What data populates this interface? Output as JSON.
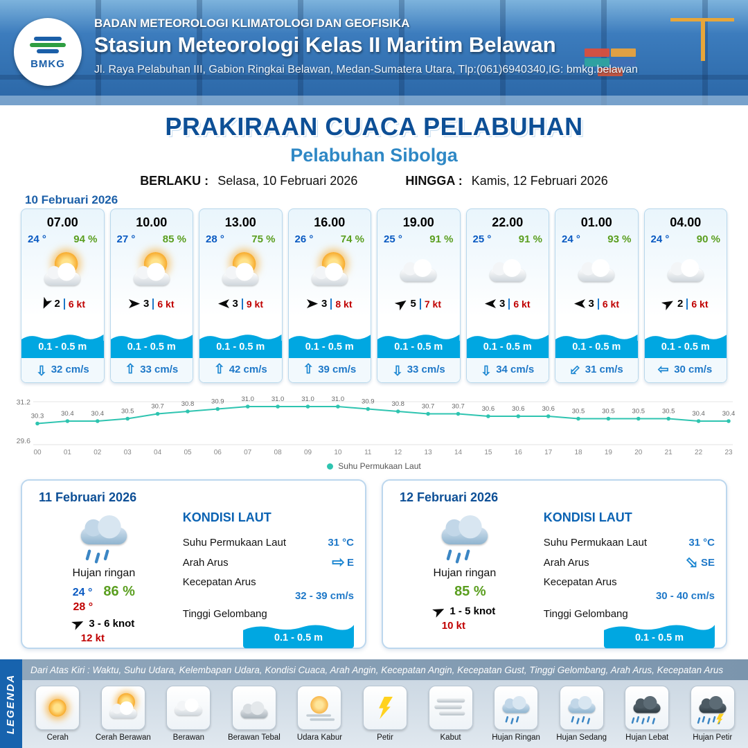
{
  "header": {
    "logo_text": "BMKG",
    "org": "BADAN METEOROLOGI KLIMATOLOGI DAN GEOFISIKA",
    "station": "Stasiun Meteorologi Kelas II Maritim Belawan",
    "address": "Jl. Raya Pelabuhan III, Gabion Ringkai Belawan, Medan-Sumatera Utara, Tlp:(061)6940340,IG: bmkg.belawan"
  },
  "title": {
    "main": "PRAKIRAAN CUACA PELABUHAN",
    "port": "Pelabuhan Sibolga",
    "berlaku_label": "BERLAKU :",
    "berlaku_value": "Selasa, 10 Februari 2026",
    "hingga_label": "HINGGA :",
    "hingga_value": "Kamis, 12 Februari 2026"
  },
  "forecast_date": "10 Februari 2026",
  "forecast_cards": [
    {
      "time": "07.00",
      "temp": "24 °",
      "humidity": "94 %",
      "icon": "sun-cloud",
      "wind_deg": 115,
      "wind_speed": "2",
      "wind_gust": "6 kt",
      "wave": "0.1 - 0.5 m",
      "current_deg": 180,
      "current": "32 cm/s"
    },
    {
      "time": "10.00",
      "temp": "27 °",
      "humidity": "85 %",
      "icon": "sun-cloud",
      "wind_deg": 0,
      "wind_speed": "3",
      "wind_gust": "6 kt",
      "wave": "0.1 - 0.5 m",
      "current_deg": 0,
      "current": "33 cm/s"
    },
    {
      "time": "13.00",
      "temp": "28 °",
      "humidity": "75 %",
      "icon": "sun-cloud",
      "wind_deg": 180,
      "wind_speed": "3",
      "wind_gust": "9 kt",
      "wave": "0.1 - 0.5 m",
      "current_deg": 0,
      "current": "42 cm/s"
    },
    {
      "time": "16.00",
      "temp": "26 °",
      "humidity": "74 %",
      "icon": "sun-cloud",
      "wind_deg": 0,
      "wind_speed": "3",
      "wind_gust": "8 kt",
      "wave": "0.1 - 0.5 m",
      "current_deg": 0,
      "current": "39 cm/s"
    },
    {
      "time": "19.00",
      "temp": "25 °",
      "humidity": "91 %",
      "icon": "cloud",
      "wind_deg": -35,
      "wind_speed": "5",
      "wind_gust": "7 kt",
      "wave": "0.1 - 0.5 m",
      "current_deg": 180,
      "current": "33 cm/s"
    },
    {
      "time": "22.00",
      "temp": "25 °",
      "humidity": "91 %",
      "icon": "cloud",
      "wind_deg": 180,
      "wind_speed": "3",
      "wind_gust": "6 kt",
      "wave": "0.1 - 0.5 m",
      "current_deg": 180,
      "current": "34 cm/s"
    },
    {
      "time": "01.00",
      "temp": "24 °",
      "humidity": "93 %",
      "icon": "cloud",
      "wind_deg": 180,
      "wind_speed": "3",
      "wind_gust": "6 kt",
      "wave": "0.1 - 0.5 m",
      "current_deg": -135,
      "current": "31 cm/s"
    },
    {
      "time": "04.00",
      "temp": "24 °",
      "humidity": "90 %",
      "icon": "cloud",
      "wind_deg": -30,
      "wind_speed": "2",
      "wind_gust": "6 kt",
      "wave": "0.1 - 0.5 m",
      "current_deg": -90,
      "current": "30 cm/s"
    }
  ],
  "chart_data": {
    "type": "line",
    "x": [
      "00",
      "01",
      "02",
      "03",
      "04",
      "05",
      "06",
      "07",
      "08",
      "09",
      "10",
      "11",
      "12",
      "13",
      "14",
      "15",
      "16",
      "17",
      "18",
      "19",
      "20",
      "21",
      "22",
      "23"
    ],
    "values": [
      30.3,
      30.4,
      30.4,
      30.5,
      30.7,
      30.8,
      30.9,
      31.0,
      31.0,
      31.0,
      31.0,
      30.9,
      30.8,
      30.7,
      30.7,
      30.6,
      30.6,
      30.6,
      30.5,
      30.5,
      30.5,
      30.5,
      30.4,
      30.4
    ],
    "ylim": [
      29.6,
      31.2
    ],
    "y_ticks": [
      "31.2",
      "29.6"
    ],
    "legend_label": "Suhu Permukaan Laut",
    "line_color": "#2ec4b0",
    "grid": true,
    "legend_position": "bottom"
  },
  "day_cards": [
    {
      "date": "11 Februari 2026",
      "icon": "rain-light",
      "condition": "Hujan ringan",
      "temp_min": "24 °",
      "humidity": "86 %",
      "temp_max": "28 °",
      "wind_deg": -25,
      "wind": "3  - 6 knot",
      "gust": "12 kt",
      "sea_title": "KONDISI LAUT",
      "sst_label": "Suhu Permukaan Laut",
      "sst": "31 °C",
      "current_dir_label": "Arah Arus",
      "current_deg": 90,
      "current_dir": "E",
      "current_speed_label": "Kecepatan Arus",
      "current_speed": "32 - 39 cm/s",
      "wave_label": "Tinggi Gelombang",
      "wave": "0.1 - 0.5 m"
    },
    {
      "date": "12 Februari 2026",
      "icon": "rain-light",
      "condition": "Hujan ringan",
      "humidity": "85 %",
      "wind_deg": -25,
      "wind": "1  - 5 knot",
      "gust": "10 kt",
      "sea_title": "KONDISI LAUT",
      "sst_label": "Suhu Permukaan Laut",
      "sst": "31 °C",
      "current_dir_label": "Arah Arus",
      "current_deg": 135,
      "current_dir": "SE",
      "current_speed_label": "Kecepatan Arus",
      "current_speed": "30  - 40 cm/s",
      "wave_label": "Tinggi Gelombang",
      "wave": "0.1 - 0.5 m"
    }
  ],
  "legend": {
    "strip_label": "LEGENDA",
    "description": "Dari Atas Kiri : Waktu, Suhu Udara, Kelembapan Udara, Kondisi Cuaca, Arah Angin, Kecepatan Angin, Kecepatan Gust, Tinggi Gelombang, Arah Arus, Kecepatan Arus",
    "items": [
      {
        "label": "Cerah",
        "icon": "sun"
      },
      {
        "label": "Cerah Berawan",
        "icon": "sun-cloud"
      },
      {
        "label": "Berawan",
        "icon": "cloud"
      },
      {
        "label": "Berawan Tebal",
        "icon": "cloud-dark"
      },
      {
        "label": "Udara Kabur",
        "icon": "haze"
      },
      {
        "label": "Petir",
        "icon": "thunder"
      },
      {
        "label": "Kabut",
        "icon": "fog"
      },
      {
        "label": "Hujan Ringan",
        "icon": "rain-light"
      },
      {
        "label": "Hujan Sedang",
        "icon": "rain-medium"
      },
      {
        "label": "Hujan Lebat",
        "icon": "rain-heavy"
      },
      {
        "label": "Hujan Petir",
        "icon": "rain-thunder"
      }
    ]
  }
}
